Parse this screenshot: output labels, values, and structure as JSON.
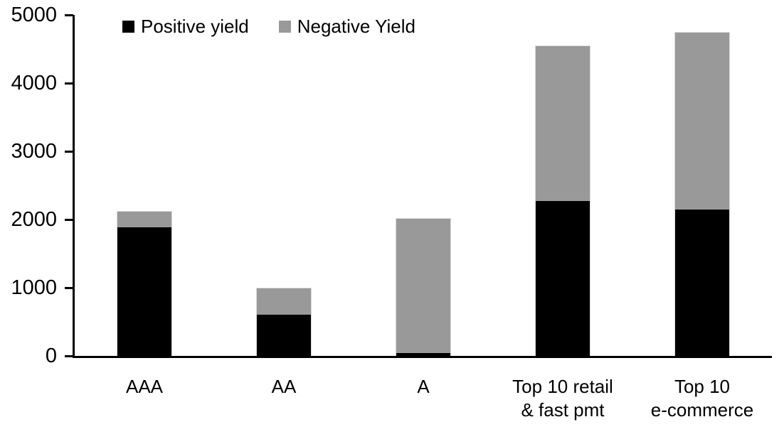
{
  "legend": {
    "items": [
      {
        "label": "Positive yield",
        "color": "#000000"
      },
      {
        "label": "Negative Yield",
        "color": "#999999"
      }
    ]
  },
  "axis_colors": {
    "axis_line": "#000000",
    "bar_edge": "#d9d9d9"
  },
  "chart_data": {
    "type": "bar",
    "stacked": true,
    "title": "",
    "xlabel": "",
    "ylabel": "",
    "categories": [
      "AAA",
      "AA",
      "A",
      "Top 10 retail\n& fast pmt",
      "Top 10\ne-commerce"
    ],
    "series": [
      {
        "name": "Positive yield",
        "color": "#000000",
        "values": [
          1890,
          600,
          40,
          2270,
          2150
        ]
      },
      {
        "name": "Negative Yield",
        "color": "#999999",
        "values": [
          230,
          400,
          1980,
          2280,
          2600
        ]
      }
    ],
    "totals": [
      2120,
      1000,
      2020,
      4550,
      4750
    ],
    "ylim": [
      0,
      5000
    ],
    "yticks": [
      0,
      1000,
      2000,
      3000,
      4000,
      5000
    ],
    "ytick_labels": [
      "0",
      "1000",
      "2000",
      "3000",
      "4000",
      "5000"
    ],
    "grid": false,
    "legend_position": "top-left"
  }
}
